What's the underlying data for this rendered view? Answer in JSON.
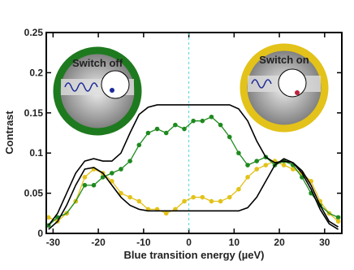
{
  "chart_data": {
    "type": "line",
    "x_label": "Blue transition energy (µeV)",
    "y_label": "Contrast",
    "x": [
      -31,
      -29,
      -27,
      -25,
      -23,
      -21,
      -19,
      -17,
      -15,
      -13,
      -11,
      -9,
      -7,
      -5,
      -3,
      -1,
      1,
      3,
      5,
      7,
      9,
      11,
      13,
      15,
      17,
      19,
      21,
      23,
      25,
      27,
      29,
      31,
      33
    ],
    "series": [
      {
        "color": "#000000",
        "markers": false,
        "values": [
          0.01,
          0.025,
          0.05,
          0.075,
          0.09,
          0.093,
          0.09,
          0.09,
          0.1,
          0.125,
          0.148,
          0.157,
          0.16,
          0.16,
          0.16,
          0.16,
          0.16,
          0.16,
          0.16,
          0.16,
          0.16,
          0.155,
          0.14,
          0.115,
          0.095,
          0.088,
          0.09,
          0.088,
          0.078,
          0.06,
          0.035,
          0.015,
          0.008
        ]
      },
      {
        "color": "#000000",
        "markers": false,
        "values": [
          0.005,
          0.015,
          0.035,
          0.06,
          0.08,
          0.082,
          0.075,
          0.06,
          0.045,
          0.035,
          0.03,
          0.028,
          0.028,
          0.028,
          0.028,
          0.028,
          0.028,
          0.028,
          0.028,
          0.028,
          0.028,
          0.028,
          0.032,
          0.045,
          0.065,
          0.085,
          0.093,
          0.088,
          0.075,
          0.055,
          0.03,
          0.012,
          0.005
        ]
      },
      {
        "color": "#1e8a1e",
        "markers": true,
        "values": [
          0.01,
          0.02,
          0.025,
          0.04,
          0.06,
          0.06,
          0.07,
          0.075,
          0.08,
          0.09,
          0.11,
          0.125,
          0.13,
          0.125,
          0.135,
          0.13,
          0.14,
          0.14,
          0.145,
          0.135,
          0.12,
          0.1,
          0.085,
          0.09,
          0.095,
          0.085,
          0.09,
          0.085,
          0.07,
          0.05,
          0.035,
          0.025,
          0.02
        ]
      },
      {
        "color": "#e3c21a",
        "markers": true,
        "values": [
          0.02,
          0.015,
          0.025,
          0.04,
          0.07,
          0.08,
          0.075,
          0.065,
          0.05,
          0.045,
          0.04,
          0.03,
          0.03,
          0.025,
          0.03,
          0.04,
          0.045,
          0.045,
          0.04,
          0.04,
          0.045,
          0.055,
          0.07,
          0.08,
          0.085,
          0.09,
          0.085,
          0.08,
          0.075,
          0.065,
          0.04,
          0.025,
          0.015
        ]
      }
    ],
    "vline": 0,
    "xlim": [
      -31.5,
      33.8
    ],
    "ylim": [
      0,
      0.25
    ],
    "xticks": [
      -30,
      -20,
      -10,
      0,
      10,
      20,
      30
    ],
    "yticks": [
      0,
      0.05,
      0.1,
      0.15,
      0.2,
      0.25
    ],
    "insets": [
      {
        "label": "Switch off",
        "color": "#1e7a1e"
      },
      {
        "label": "Switch on",
        "color": "#e3c21a"
      }
    ]
  }
}
